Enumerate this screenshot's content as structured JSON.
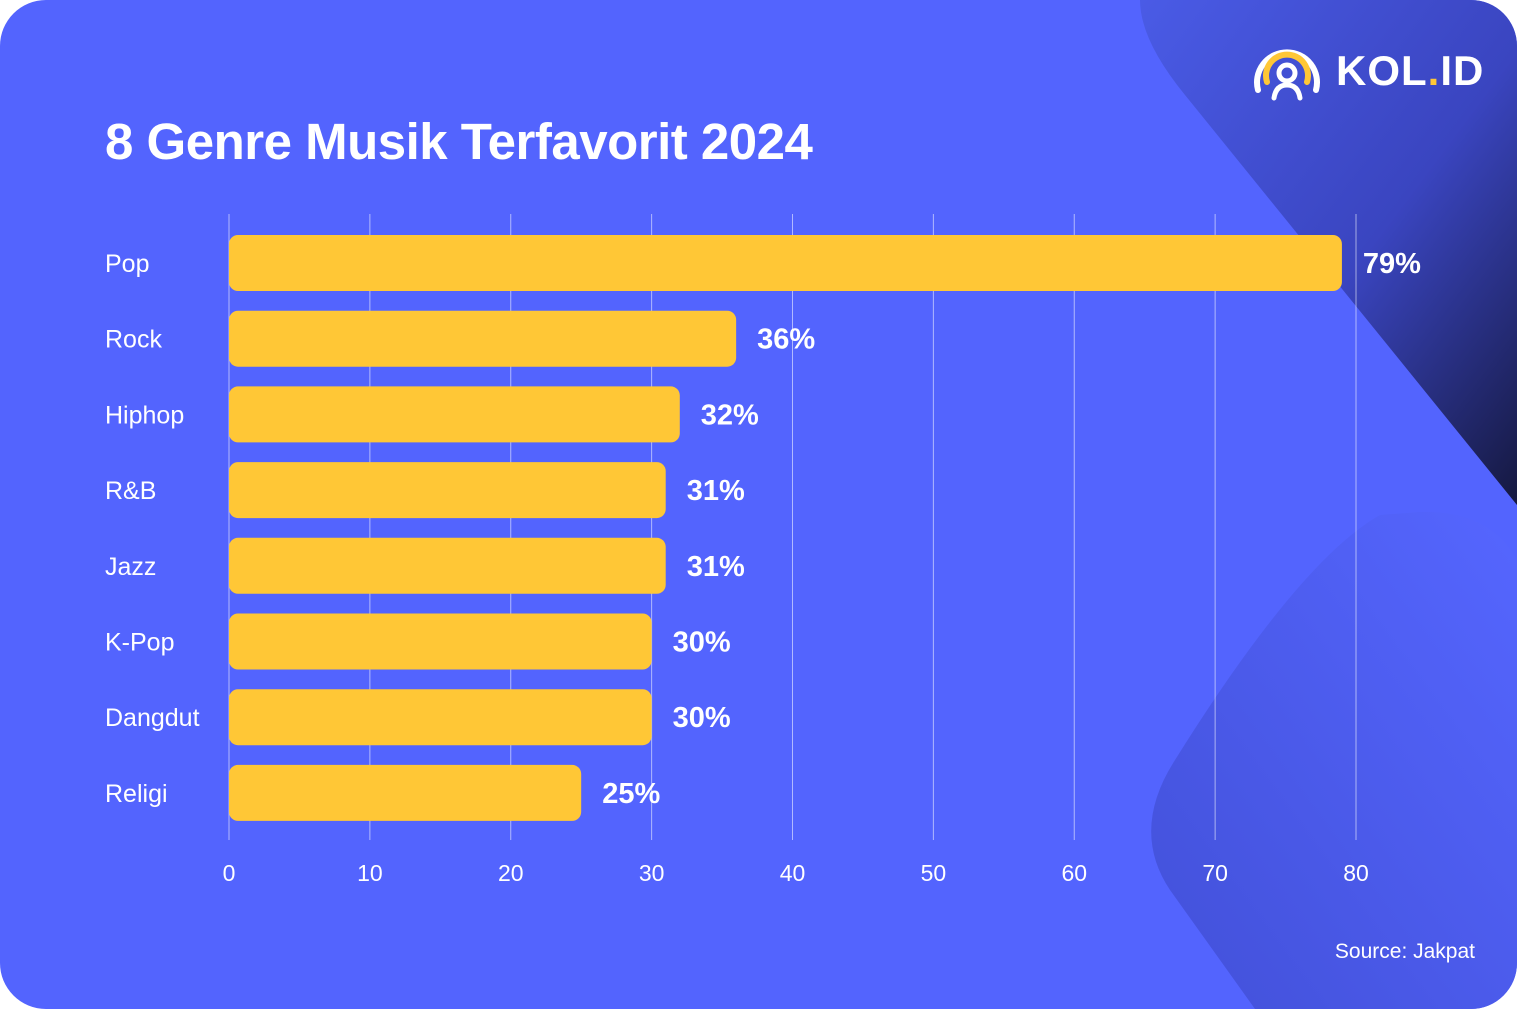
{
  "logo": {
    "text_main": "KOL",
    "text_dot": ".",
    "text_end": "ID"
  },
  "source": "Source: Jakpat",
  "colors": {
    "background": "#5364fe",
    "bar": "#ffc736",
    "text": "#ffffff"
  },
  "chart_data": {
    "type": "bar",
    "orientation": "horizontal",
    "title": "8 Genre Musik Terfavorit 2024",
    "categories": [
      "Pop",
      "Rock",
      "Hiphop",
      "R&B",
      "Jazz",
      "K-Pop",
      "Dangdut",
      "Religi"
    ],
    "values": [
      79,
      36,
      32,
      31,
      31,
      30,
      30,
      25
    ],
    "value_labels": [
      "79%",
      "36%",
      "32%",
      "31%",
      "31%",
      "30%",
      "30%",
      "25%"
    ],
    "xlim": [
      0,
      80
    ],
    "xticks": [
      "0",
      "10",
      "20",
      "30",
      "40",
      "50",
      "60",
      "70",
      "80"
    ],
    "grid": true,
    "xlabel": "",
    "ylabel": ""
  }
}
